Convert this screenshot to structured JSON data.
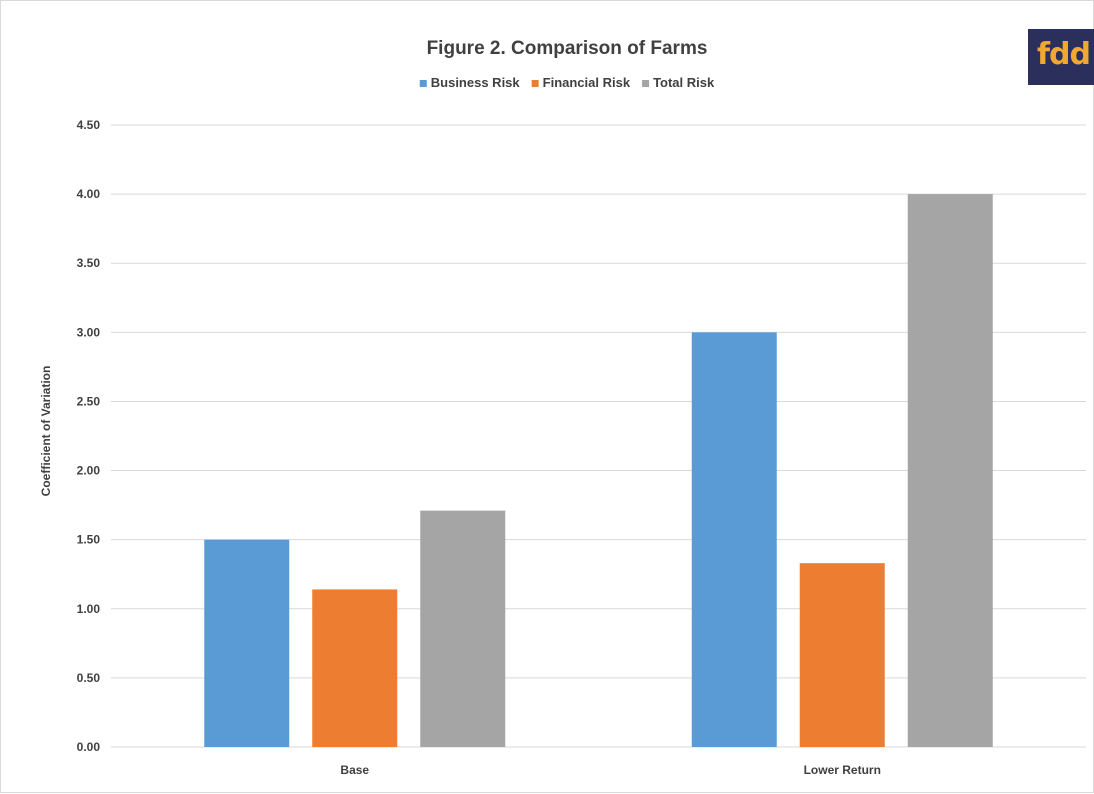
{
  "chart_data": {
    "type": "bar",
    "title": "Figure 2.  Comparison of Farms",
    "xlabel": "",
    "ylabel": "Coefficient of Variation",
    "categories": [
      "Base",
      "Lower Return"
    ],
    "series": [
      {
        "name": "Business Risk",
        "color": "#5b9bd5",
        "values": [
          1.5,
          3.0
        ]
      },
      {
        "name": "Financial Risk",
        "color": "#ed7d31",
        "values": [
          1.14,
          1.33
        ]
      },
      {
        "name": "Total Risk",
        "color": "#a5a5a5",
        "values": [
          1.71,
          4.0
        ]
      }
    ],
    "ylim": [
      0,
      4.5
    ],
    "ytick_values": [
      0,
      0.5,
      1.0,
      1.5,
      2.0,
      2.5,
      3.0,
      3.5,
      4.0,
      4.5
    ],
    "ytick_labels": [
      "0.00",
      "0.50",
      "1.00",
      "1.50",
      "2.00",
      "2.50",
      "3.00",
      "3.50",
      "4.00",
      "4.50"
    ],
    "grid": true,
    "legend_position": "top"
  },
  "logo": {
    "text": "fdd"
  },
  "colors": {
    "text": "#404040",
    "grid": "#d9d9d9",
    "logo_bg": "#2b2f5b",
    "logo_fg": "#f0a830"
  }
}
